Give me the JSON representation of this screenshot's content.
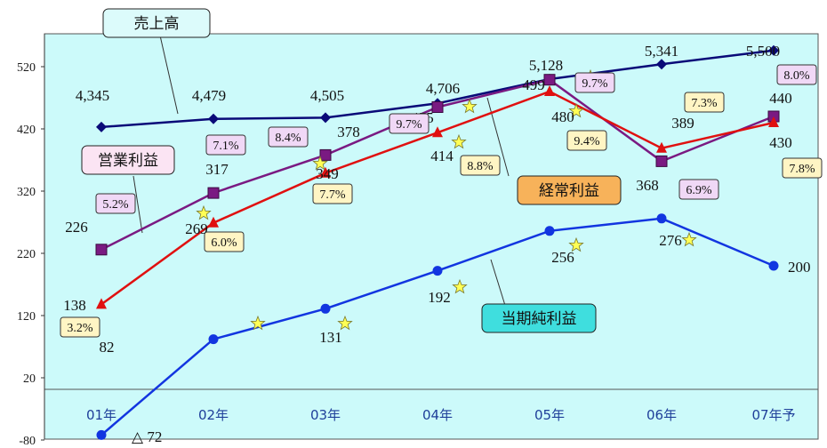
{
  "chart_data": {
    "type": "line",
    "categories": [
      "01年",
      "02年",
      "03年",
      "04年",
      "05年",
      "06年",
      "07年予"
    ],
    "y_ticks": [
      "520",
      "420",
      "320",
      "220",
      "120",
      "20",
      "-80"
    ],
    "ylim": [
      -80,
      540
    ],
    "grid": false,
    "series": [
      {
        "name": "売上高",
        "color": "#0a0a78",
        "marker": "diamond",
        "plotted": [
          423,
          436,
          438,
          461,
          500,
          524,
          546
        ],
        "labels": [
          "4,345",
          "4,479",
          "4,505",
          "4,706",
          "5,128",
          "5,341",
          "5,500"
        ]
      },
      {
        "name": "営業利益",
        "color": "#7a1a82",
        "marker": "square",
        "values": [
          226,
          317,
          378,
          455,
          499,
          368,
          440
        ],
        "labels": [
          "226",
          "317",
          "378",
          "455",
          "499",
          "368",
          "440"
        ],
        "margins": [
          "5.2%",
          "7.1%",
          "8.4%",
          "9.7%",
          "9.7%",
          "6.9%",
          "8.0%"
        ],
        "margin_box_color": "#f0d8f6"
      },
      {
        "name": "経常利益",
        "color": "#e01010",
        "marker": "triangle",
        "values": [
          138,
          269,
          349,
          414,
          480,
          389,
          430
        ],
        "labels": [
          "138",
          "269",
          "349",
          "414",
          "480",
          "389",
          "430"
        ],
        "margins": [
          "3.2%",
          "6.0%",
          "7.7%",
          "8.8%",
          "9.4%",
          "7.3%",
          "7.8%"
        ],
        "margin_box_color": "#fff5c4"
      },
      {
        "name": "当期純利益",
        "color": "#1235e0",
        "marker": "circle",
        "values": [
          -72,
          82,
          131,
          192,
          256,
          276,
          200
        ],
        "labels": [
          "△ 72",
          "82",
          "131",
          "192",
          "256",
          "276",
          "200"
        ]
      }
    ],
    "callouts": [
      {
        "text": "売上高",
        "fill": "#dcfbfb"
      },
      {
        "text": "営業利益",
        "fill": "#fbe4f3"
      },
      {
        "text": "経常利益",
        "fill": "#f7b25a"
      },
      {
        "text": "当期純利益",
        "fill": "#3fdede"
      }
    ],
    "colors": {
      "plot_background": "#ccfafa",
      "star": "#ffff55"
    }
  }
}
